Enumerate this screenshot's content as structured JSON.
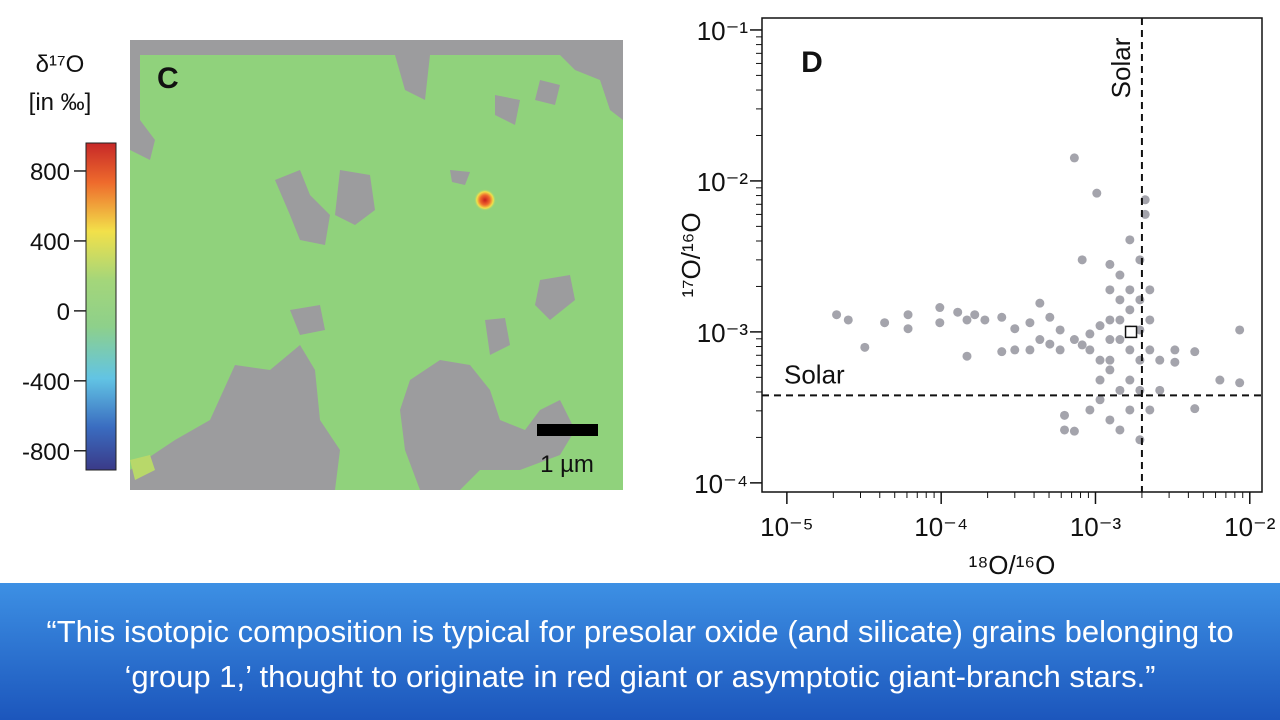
{
  "chart_data": [
    {
      "type": "heatmap",
      "panel": "C",
      "colorbar_label": [
        "δ¹⁷O",
        "[in ‰]"
      ],
      "colorbar_lim": [
        -910,
        960
      ],
      "colorbar_ticks": [
        800,
        400,
        0,
        -400,
        -800
      ],
      "scale_bar_label": "1 µm"
    },
    {
      "type": "scatter",
      "panel": "D",
      "x_label": "¹⁸O/¹⁶O",
      "y_label": "¹⁷O/¹⁶O",
      "xscale": "log",
      "yscale": "log",
      "xlim": [
        6.9e-06,
        0.012
      ],
      "ylim": [
        8.7e-05,
        0.12
      ],
      "xticks": [
        {
          "value": 1e-05,
          "label": "10⁻⁵"
        },
        {
          "value": 0.0001,
          "label": "10⁻⁴"
        },
        {
          "value": 0.001,
          "label": "10⁻³"
        },
        {
          "value": 0.01,
          "label": "10⁻²"
        }
      ],
      "yticks": [
        {
          "value": 0.0001,
          "label": "10⁻⁴"
        },
        {
          "value": 0.001,
          "label": "10⁻³"
        },
        {
          "value": 0.01,
          "label": "10⁻²"
        },
        {
          "value": 0.1,
          "label": "10⁻¹"
        }
      ],
      "series": [
        {
          "color": "#a4a4ac",
          "x": [
            2.1e-05,
            2.5e-05,
            3.2e-05,
            4.3e-05,
            6.1e-05,
            6.1e-05,
            9.8e-05,
            9.8e-05,
            0.000128,
            0.000147,
            0.000147,
            0.000165,
            0.000192,
            0.000247,
            0.000247,
            0.0003,
            0.0003,
            0.000376,
            0.000376,
            0.000436,
            0.000436,
            0.000506,
            0.000506,
            0.00059,
            0.00059,
            0.00063,
            0.00063,
            0.00073,
            0.00073,
            0.00073,
            0.00082,
            0.00082,
            0.00092,
            0.00092,
            0.00102,
            0.00107,
            0.00107,
            0.00107,
            0.00124,
            0.00124,
            0.00124,
            0.00124,
            0.00124,
            0.00124,
            0.00144,
            0.00144,
            0.00144,
            0.00144,
            0.00144,
            0.00167,
            0.00167,
            0.00167,
            0.00167,
            0.00167,
            0.00167,
            0.00194,
            0.00194,
            0.00194,
            0.00194,
            0.00194,
            0.0021,
            0.0021,
            0.00225,
            0.00225,
            0.00225,
            0.00225,
            0.00261,
            0.00261,
            0.00327,
            0.00327,
            0.0044,
            0.0044,
            0.0064,
            0.0086,
            0.0086,
            0.00107,
            0.00092,
            0.00144,
            0.00167,
            0.00124,
            0.00194
          ],
          "values": [
            0.0013,
            0.0012,
            0.00079,
            0.00115,
            0.0013,
            0.00105,
            0.00145,
            0.00115,
            0.00135,
            0.0012,
            0.00069,
            0.0013,
            0.0012,
            0.00125,
            0.00074,
            0.00105,
            0.00076,
            0.00115,
            0.00076,
            0.00155,
            0.00089,
            0.00125,
            0.00083,
            0.00103,
            0.00076,
            0.00028,
            0.000224,
            0.00089,
            0.0142,
            0.00022,
            0.003,
            0.00082,
            0.00076,
            0.000304,
            0.0083,
            0.0011,
            0.00048,
            0.000355,
            0.0028,
            0.0019,
            0.0012,
            0.00065,
            0.00056,
            0.000261,
            0.00163,
            0.00238,
            0.00089,
            0.00041,
            0.000224,
            0.00407,
            0.0019,
            0.0014,
            0.00076,
            0.00048,
            0.000304,
            0.003,
            0.00163,
            0.00065,
            0.000193,
            0.00041,
            0.0075,
            0.006,
            0.0019,
            0.0012,
            0.00076,
            0.000304,
            0.00041,
            0.00065,
            0.00063,
            0.00076,
            0.00074,
            0.00031,
            0.00048,
            0.00103,
            0.00046,
            0.00065,
            0.00097,
            0.0012,
            0.00103,
            0.00089,
            0.00103
          ]
        }
      ],
      "marker": {
        "x": 0.0017,
        "y": 0.001
      },
      "reference_lines": [
        {
          "axis": "x",
          "value": 0.002,
          "label": "Solar"
        },
        {
          "axis": "y",
          "value": 0.00038,
          "label": "Solar"
        }
      ]
    }
  ],
  "caption": {
    "lines": [
      "“This isotopic composition is typical for presolar oxide (and silicate) grains belonging to",
      "‘group 1,’ thought to originate in red giant or asymptotic giant-branch stars.”"
    ]
  }
}
